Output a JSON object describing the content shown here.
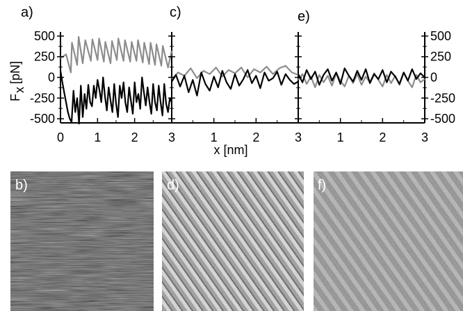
{
  "chart_data": [
    {
      "panel": "a)",
      "type": "line",
      "xlabel": "",
      "ylabel": "F_x [pN]",
      "ylabel_main": "F",
      "ylabel_sub": "x",
      "ylabel_unit": "[pN]",
      "xlim": [
        0,
        3
      ],
      "ylim": [
        -550,
        550
      ],
      "xticks": [
        "0",
        "1",
        "2",
        "3"
      ],
      "yticks": [
        "500",
        "250",
        "0",
        "-250",
        "-500"
      ],
      "series": [
        {
          "color": "#8c8c8c",
          "x": [
            0,
            0.15,
            0.28,
            0.31,
            0.45,
            0.49,
            0.6,
            0.67,
            0.82,
            0.86,
            1.0,
            1.04,
            1.17,
            1.21,
            1.35,
            1.39,
            1.52,
            1.56,
            1.7,
            1.74,
            1.88,
            1.92,
            2.05,
            2.09,
            2.22,
            2.26,
            2.39,
            2.43,
            2.55,
            2.59,
            2.72,
            2.76,
            2.9,
            3.0
          ],
          "y": [
            230,
            280,
            60,
            420,
            150,
            490,
            170,
            450,
            200,
            460,
            210,
            470,
            190,
            430,
            170,
            440,
            210,
            470,
            200,
            450,
            190,
            430,
            200,
            450,
            180,
            420,
            160,
            420,
            150,
            400,
            140,
            380,
            120,
            320
          ]
        },
        {
          "color": "#000000",
          "x": [
            0,
            0.05,
            0.1,
            0.15,
            0.2,
            0.25,
            0.3,
            0.35,
            0.4,
            0.45,
            0.5,
            0.55,
            0.6,
            0.65,
            0.7,
            0.75,
            0.8,
            0.85,
            0.9,
            0.95,
            1.0,
            1.05,
            1.1,
            1.15,
            1.2,
            1.25,
            1.3,
            1.35,
            1.4,
            1.45,
            1.5,
            1.55,
            1.6,
            1.65,
            1.7,
            1.75,
            1.8,
            1.85,
            1.9,
            1.95,
            2.0,
            2.05,
            2.1,
            2.15,
            2.2,
            2.25,
            2.3,
            2.35,
            2.4,
            2.45,
            2.5,
            2.55,
            2.6,
            2.65,
            2.7,
            2.75,
            2.8,
            2.85,
            2.9,
            2.95,
            3.0
          ],
          "y": [
            80,
            -60,
            -180,
            -300,
            -420,
            -500,
            -540,
            -160,
            -420,
            -250,
            -560,
            -100,
            -480,
            -200,
            -380,
            -90,
            -300,
            -350,
            -100,
            -250,
            -30,
            -150,
            -300,
            0,
            -230,
            -400,
            -120,
            -280,
            -420,
            -80,
            -320,
            -480,
            -100,
            -250,
            -60,
            -300,
            -420,
            -120,
            -280,
            -440,
            -60,
            -300,
            -200,
            -380,
            0,
            -180,
            -340,
            -120,
            -300,
            -440,
            -80,
            -300,
            -400,
            -100,
            -300,
            -460,
            -80,
            -320,
            -420,
            -250,
            -300
          ]
        }
      ]
    },
    {
      "panel": "c)",
      "type": "line",
      "xlabel": "x [nm]",
      "xlim": [
        0,
        3
      ],
      "ylim": [
        -550,
        550
      ],
      "xticks": [
        "1",
        "2",
        "3"
      ],
      "series": [
        {
          "color": "#8c8c8c",
          "x": [
            0,
            0.15,
            0.3,
            0.45,
            0.6,
            0.75,
            0.9,
            1.05,
            1.2,
            1.35,
            1.5,
            1.65,
            1.8,
            1.95,
            2.1,
            2.25,
            2.4,
            2.55,
            2.7,
            2.85,
            3.0
          ],
          "y": [
            -20,
            60,
            20,
            110,
            -10,
            80,
            40,
            120,
            10,
            90,
            50,
            120,
            0,
            100,
            60,
            130,
            40,
            110,
            140,
            60,
            30
          ]
        },
        {
          "color": "#000000",
          "x": [
            0,
            0.1,
            0.2,
            0.3,
            0.4,
            0.5,
            0.6,
            0.7,
            0.8,
            0.9,
            1.0,
            1.1,
            1.2,
            1.3,
            1.4,
            1.5,
            1.6,
            1.7,
            1.8,
            1.9,
            2.0,
            2.1,
            2.2,
            2.3,
            2.4,
            2.5,
            2.6,
            2.7,
            2.8,
            2.9,
            3.0
          ],
          "y": [
            -50,
            30,
            -110,
            20,
            -180,
            -30,
            -220,
            60,
            -80,
            -160,
            10,
            -120,
            80,
            -60,
            -140,
            40,
            -100,
            -20,
            90,
            -70,
            20,
            -130,
            60,
            -40,
            -10,
            70,
            -90,
            40,
            -30,
            -80,
            -50
          ]
        }
      ]
    },
    {
      "panel": "e)",
      "type": "line",
      "xlim": [
        0,
        3
      ],
      "ylim": [
        -550,
        550
      ],
      "xticks": [
        "1",
        "2",
        "3"
      ],
      "yticks": [
        "500",
        "250",
        "0",
        "-250",
        "-500"
      ],
      "series": [
        {
          "color": "#8c8c8c",
          "x": [
            0,
            0.1,
            0.2,
            0.3,
            0.4,
            0.5,
            0.6,
            0.7,
            0.8,
            0.9,
            1.0,
            1.1,
            1.2,
            1.3,
            1.4,
            1.5,
            1.6,
            1.7,
            1.8,
            1.9,
            2.0,
            2.1,
            2.2,
            2.3,
            2.4,
            2.5,
            2.6,
            2.7,
            2.8,
            2.9,
            3.0
          ],
          "y": [
            -30,
            40,
            -80,
            10,
            -120,
            30,
            -60,
            20,
            -100,
            50,
            -40,
            -110,
            20,
            -70,
            40,
            -90,
            10,
            -60,
            50,
            -30,
            -110,
            30,
            -70,
            20,
            -90,
            60,
            -40,
            -120,
            30,
            -60,
            -20
          ]
        },
        {
          "color": "#000000",
          "x": [
            0,
            0.1,
            0.2,
            0.3,
            0.4,
            0.5,
            0.6,
            0.7,
            0.8,
            0.9,
            1.0,
            1.1,
            1.2,
            1.3,
            1.4,
            1.5,
            1.6,
            1.7,
            1.8,
            1.9,
            2.0,
            2.1,
            2.2,
            2.3,
            2.4,
            2.5,
            2.6,
            2.7,
            2.8,
            2.9,
            3.0
          ],
          "y": [
            40,
            -60,
            90,
            -20,
            70,
            -90,
            30,
            100,
            -40,
            60,
            -80,
            110,
            20,
            -50,
            80,
            -30,
            100,
            -70,
            40,
            -20,
            90,
            -60,
            70,
            10,
            -80,
            60,
            -40,
            100,
            -20,
            50,
            0
          ]
        }
      ]
    }
  ],
  "images": [
    {
      "label": "b)",
      "style": "streaky"
    },
    {
      "label": "d)",
      "style": "diagonal-lattice"
    },
    {
      "label": "f)",
      "style": "faint-lattice"
    }
  ]
}
